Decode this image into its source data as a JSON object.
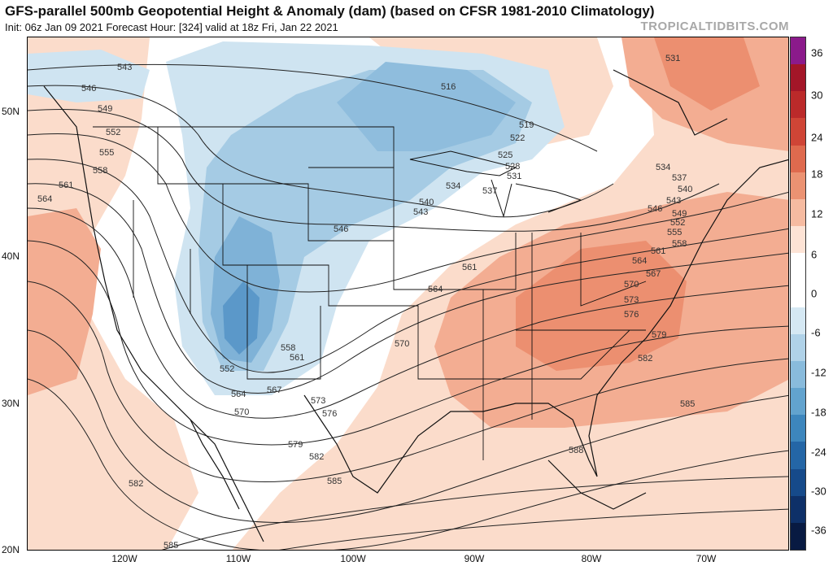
{
  "header": {
    "title": "GFS-parallel 500mb Geopotential Height & Anomaly (dam) (based on CFSR 1981-2010 Climatology)",
    "subtitle": "Init: 06z Jan 09 2021   Forecast Hour: [324]   valid at 18z Fri, Jan 22 2021",
    "brand": "TROPICALTIDBITS.COM"
  },
  "axes": {
    "lat_labels": [
      "50N",
      "40N",
      "30N",
      "20N"
    ],
    "lon_labels": [
      "120W",
      "110W",
      "100W",
      "90W",
      "80W",
      "70W"
    ]
  },
  "colorbar": {
    "labels": [
      "36",
      "30",
      "24",
      "18",
      "12",
      "6",
      "0",
      "-6",
      "-12",
      "-18",
      "-24",
      "-30",
      "-36"
    ],
    "colors": [
      "#8b1a8b",
      "#a31628",
      "#bb2a2a",
      "#cf4536",
      "#df6a4e",
      "#eb9272",
      "#f6bba1",
      "#fde3d5",
      "#ffffff",
      "#ffffff",
      "#d5e8f3",
      "#b0d2e8",
      "#89bbdc",
      "#62a3ce",
      "#3d86bd",
      "#2466a6",
      "#164a8a",
      "#0e3068",
      "#081a42"
    ]
  },
  "contour_labels": [
    {
      "text": "543"
    },
    {
      "text": "546"
    },
    {
      "text": "549"
    },
    {
      "text": "552"
    },
    {
      "text": "555"
    },
    {
      "text": "558"
    },
    {
      "text": "561"
    },
    {
      "text": "564"
    },
    {
      "text": "516"
    },
    {
      "text": "519"
    },
    {
      "text": "522"
    },
    {
      "text": "525"
    },
    {
      "text": "528"
    },
    {
      "text": "531"
    },
    {
      "text": "534"
    },
    {
      "text": "537"
    },
    {
      "text": "540"
    },
    {
      "text": "543"
    },
    {
      "text": "546"
    },
    {
      "text": "531"
    },
    {
      "text": "534"
    },
    {
      "text": "537"
    },
    {
      "text": "540"
    },
    {
      "text": "543"
    },
    {
      "text": "546"
    },
    {
      "text": "549"
    },
    {
      "text": "552"
    },
    {
      "text": "555"
    },
    {
      "text": "558"
    },
    {
      "text": "561"
    },
    {
      "text": "564"
    },
    {
      "text": "567"
    },
    {
      "text": "570"
    },
    {
      "text": "573"
    },
    {
      "text": "576"
    },
    {
      "text": "579"
    },
    {
      "text": "582"
    },
    {
      "text": "585"
    },
    {
      "text": "588"
    },
    {
      "text": "561"
    },
    {
      "text": "564"
    },
    {
      "text": "570"
    },
    {
      "text": "552"
    },
    {
      "text": "558"
    },
    {
      "text": "561"
    },
    {
      "text": "564"
    },
    {
      "text": "567"
    },
    {
      "text": "570"
    },
    {
      "text": "573"
    },
    {
      "text": "576"
    },
    {
      "text": "579"
    },
    {
      "text": "582"
    },
    {
      "text": "585"
    },
    {
      "text": "582"
    },
    {
      "text": "585"
    }
  ]
}
